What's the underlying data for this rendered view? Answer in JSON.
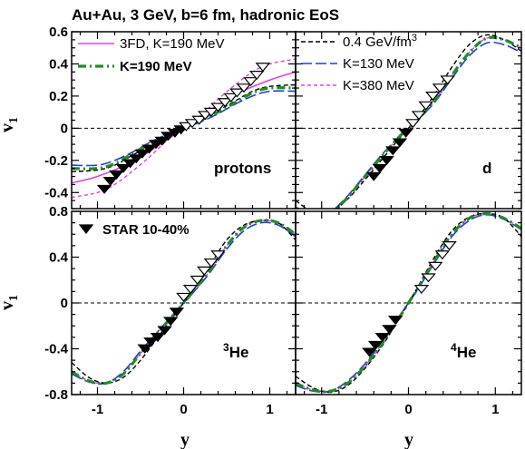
{
  "title": "Au+Au, 3 GeV, b=6 fm, hadronic EoS",
  "xlabel": "y",
  "ylabel": "v",
  "ylabel_sub": "1",
  "legends": {
    "top_left": [
      {
        "label": "3FD, K=190 MeV",
        "color": "#e040e0",
        "style": "solid"
      },
      {
        "label": "K=190 MeV",
        "color": "#228b22",
        "style": "dashdot",
        "bold": true
      }
    ],
    "top_right": [
      {
        "label": "0.4 GeV/fm",
        "sup": "3",
        "color": "#000000",
        "style": "dash"
      },
      {
        "label": "K=130 MeV",
        "color": "#1f3fd6",
        "style": "longdash"
      },
      {
        "label": "K=380 MeV",
        "color": "#e040e0",
        "style": "shortdash"
      }
    ],
    "bottom_left": [
      {
        "label": "STAR 10-40%",
        "marker": "filled-triangle-down"
      }
    ]
  },
  "colors": {
    "3fd": "#e040e0",
    "k190": "#228b22",
    "k130": "#1f3fd6",
    "k380": "#e040e0",
    "rho04": "#000000"
  },
  "chart_data": [
    {
      "type": "line",
      "panel": "protons",
      "panel_label": "protons",
      "xlim": [
        -1.3,
        1.3
      ],
      "ylim": [
        -0.5,
        0.6
      ],
      "yticks": [
        -0.4,
        -0.2,
        0,
        0.2,
        0.4,
        0.6
      ],
      "xticks": [
        -1,
        0,
        1
      ],
      "series": [
        {
          "name": "3FD, K=190 MeV",
          "key": "3fd",
          "x": [
            -1.3,
            -1.0,
            -0.6,
            -0.3,
            0.0,
            0.3,
            0.6,
            1.0,
            1.3
          ],
          "y": [
            -0.34,
            -0.3,
            -0.21,
            -0.11,
            0.0,
            0.11,
            0.21,
            0.3,
            0.35
          ]
        },
        {
          "name": "K=190 MeV",
          "key": "k190",
          "x": [
            -1.3,
            -1.0,
            -0.8,
            -0.6,
            -0.4,
            -0.2,
            0.0,
            0.2,
            0.4,
            0.6,
            0.8,
            1.0,
            1.3
          ],
          "y": [
            -0.25,
            -0.25,
            -0.22,
            -0.16,
            -0.1,
            -0.05,
            0.0,
            0.05,
            0.1,
            0.16,
            0.22,
            0.25,
            0.25
          ]
        },
        {
          "name": "0.4 GeV/fm3",
          "key": "rho04",
          "x": [
            -1.3,
            -1.0,
            -0.8,
            -0.6,
            -0.4,
            -0.2,
            0.0,
            0.2,
            0.4,
            0.6,
            0.8,
            1.0,
            1.3
          ],
          "y": [
            -0.27,
            -0.26,
            -0.23,
            -0.17,
            -0.11,
            -0.05,
            0.0,
            0.05,
            0.11,
            0.17,
            0.23,
            0.26,
            0.27
          ]
        },
        {
          "name": "K=130 MeV",
          "key": "k130",
          "x": [
            -1.3,
            -1.0,
            -0.8,
            -0.6,
            -0.4,
            -0.2,
            0.0,
            0.2,
            0.4,
            0.6,
            0.8,
            1.0,
            1.3
          ],
          "y": [
            -0.23,
            -0.23,
            -0.2,
            -0.15,
            -0.09,
            -0.04,
            0.0,
            0.04,
            0.09,
            0.15,
            0.2,
            0.23,
            0.23
          ]
        },
        {
          "name": "K=380 MeV",
          "key": "k380",
          "x": [
            -1.3,
            -1.0,
            -0.8,
            -0.6,
            -0.4,
            -0.2,
            0.0,
            0.2,
            0.4,
            0.6,
            0.8,
            1.0,
            1.3
          ],
          "y": [
            -0.43,
            -0.4,
            -0.35,
            -0.27,
            -0.18,
            -0.08,
            0.0,
            0.08,
            0.18,
            0.27,
            0.35,
            0.4,
            0.43
          ]
        }
      ],
      "star_filled": {
        "x": [
          -0.92,
          -0.85,
          -0.78,
          -0.7,
          -0.62,
          -0.55,
          -0.48,
          -0.4,
          -0.32,
          -0.25,
          -0.18,
          -0.1,
          -0.03
        ],
        "y": [
          -0.38,
          -0.33,
          -0.29,
          -0.25,
          -0.22,
          -0.19,
          -0.16,
          -0.13,
          -0.1,
          -0.08,
          -0.05,
          -0.03,
          -0.01
        ]
      },
      "star_open": {
        "x": [
          0.03,
          0.1,
          0.18,
          0.25,
          0.32,
          0.4,
          0.48,
          0.55,
          0.62,
          0.7,
          0.78,
          0.85,
          0.92
        ],
        "y": [
          0.01,
          0.03,
          0.05,
          0.08,
          0.1,
          0.13,
          0.16,
          0.19,
          0.22,
          0.25,
          0.29,
          0.33,
          0.38
        ]
      }
    },
    {
      "type": "line",
      "panel": "d",
      "panel_label": "d",
      "xlim": [
        -1.3,
        1.3
      ],
      "ylim": [
        -0.5,
        0.6
      ],
      "yticks": [
        -0.4,
        -0.2,
        0,
        0.2,
        0.4,
        0.6
      ],
      "xticks": [
        -1,
        0,
        1
      ],
      "series": [
        {
          "name": "K=190 MeV",
          "key": "k190",
          "x": [
            -1.3,
            -1.1,
            -0.9,
            -0.7,
            -0.5,
            -0.3,
            -0.1,
            0.0,
            0.1,
            0.3,
            0.5,
            0.7,
            0.9,
            1.1,
            1.3
          ],
          "y": [
            -0.5,
            -0.55,
            -0.53,
            -0.43,
            -0.3,
            -0.17,
            -0.05,
            0.0,
            0.05,
            0.17,
            0.33,
            0.47,
            0.56,
            0.55,
            0.5
          ]
        },
        {
          "name": "0.4 GeV/fm3",
          "key": "rho04",
          "x": [
            -1.3,
            -1.1,
            -0.9,
            -0.7,
            -0.5,
            -0.3,
            -0.1,
            0.0,
            0.1,
            0.3,
            0.5,
            0.7,
            0.9,
            1.1,
            1.3
          ],
          "y": [
            -0.45,
            -0.52,
            -0.52,
            -0.44,
            -0.32,
            -0.19,
            -0.06,
            0.0,
            0.06,
            0.21,
            0.38,
            0.52,
            0.58,
            0.55,
            0.48
          ]
        },
        {
          "name": "K=130 MeV",
          "key": "k130",
          "x": [
            -1.3,
            -1.1,
            -0.9,
            -0.7,
            -0.5,
            -0.3,
            -0.1,
            0.0,
            0.1,
            0.3,
            0.5,
            0.7,
            0.9,
            1.1,
            1.3
          ],
          "y": [
            -0.49,
            -0.54,
            -0.52,
            -0.42,
            -0.29,
            -0.16,
            -0.05,
            0.0,
            0.05,
            0.16,
            0.31,
            0.45,
            0.53,
            0.52,
            0.47
          ]
        },
        {
          "name": "K=380 MeV",
          "key": "k380",
          "x": [
            -1.3,
            -1.1,
            -0.9,
            -0.7,
            -0.5,
            -0.3,
            -0.1,
            0.0,
            0.1,
            0.3,
            0.5,
            0.7,
            0.9,
            1.1,
            1.3
          ],
          "y": [
            -0.5,
            -0.55,
            -0.53,
            -0.43,
            -0.3,
            -0.17,
            -0.05,
            0.0,
            0.05,
            0.17,
            0.33,
            0.47,
            0.56,
            0.55,
            0.5
          ]
        }
      ],
      "star_filled": {
        "x": [
          -0.4,
          -0.33,
          -0.25,
          -0.18,
          -0.1,
          -0.03
        ],
        "y": [
          -0.3,
          -0.25,
          -0.2,
          -0.14,
          -0.09,
          -0.03
        ]
      },
      "star_open": {
        "x": [
          0.05,
          0.12,
          0.2,
          0.28,
          0.36,
          0.45
        ],
        "y": [
          0.03,
          0.08,
          0.14,
          0.2,
          0.25,
          0.3
        ]
      }
    },
    {
      "type": "line",
      "panel": "3He",
      "panel_label": "He",
      "panel_label_sup": "3",
      "xlim": [
        -1.3,
        1.3
      ],
      "ylim": [
        -0.8,
        0.8
      ],
      "yticks": [
        -0.8,
        -0.4,
        0,
        0.4,
        0.8
      ],
      "xticks": [
        -1,
        0,
        1
      ],
      "series": [
        {
          "name": "K=190 MeV",
          "key": "k190",
          "x": [
            -1.3,
            -1.1,
            -0.9,
            -0.7,
            -0.5,
            -0.3,
            -0.1,
            0.0,
            0.1,
            0.3,
            0.5,
            0.7,
            0.9,
            1.1,
            1.3
          ],
          "y": [
            -0.6,
            -0.68,
            -0.7,
            -0.62,
            -0.44,
            -0.26,
            -0.09,
            0.0,
            0.09,
            0.28,
            0.5,
            0.66,
            0.72,
            0.7,
            0.6
          ]
        },
        {
          "name": "0.4 GeV/fm3",
          "key": "rho04",
          "x": [
            -1.3,
            -1.1,
            -0.9,
            -0.7,
            -0.5,
            -0.3,
            -0.1,
            0.0,
            0.1,
            0.3,
            0.5,
            0.7,
            0.9,
            1.1,
            1.3
          ],
          "y": [
            -0.52,
            -0.65,
            -0.7,
            -0.65,
            -0.5,
            -0.3,
            -0.1,
            0.0,
            0.1,
            0.32,
            0.55,
            0.68,
            0.72,
            0.7,
            0.55
          ]
        },
        {
          "name": "K=130 MeV",
          "key": "k130",
          "x": [
            -1.3,
            -1.1,
            -0.9,
            -0.7,
            -0.5,
            -0.3,
            -0.1,
            0.0,
            0.1,
            0.3,
            0.5,
            0.7,
            0.9,
            1.1,
            1.3
          ],
          "y": [
            -0.62,
            -0.69,
            -0.7,
            -0.6,
            -0.42,
            -0.25,
            -0.08,
            0.0,
            0.08,
            0.26,
            0.47,
            0.63,
            0.7,
            0.68,
            0.58
          ]
        },
        {
          "name": "K=380 MeV",
          "key": "k380",
          "x": [
            -1.3,
            -1.1,
            -0.9,
            -0.7,
            -0.5,
            -0.3,
            -0.1,
            0.0,
            0.1,
            0.3,
            0.5,
            0.7,
            0.9,
            1.1,
            1.3
          ],
          "y": [
            -0.6,
            -0.68,
            -0.7,
            -0.62,
            -0.44,
            -0.26,
            -0.09,
            0.0,
            0.09,
            0.28,
            0.5,
            0.66,
            0.72,
            0.7,
            0.6
          ]
        }
      ],
      "star_filled": {
        "x": [
          -0.45,
          -0.38,
          -0.3,
          -0.22,
          -0.15,
          -0.08
        ],
        "y": [
          -0.4,
          -0.34,
          -0.3,
          -0.24,
          -0.16,
          -0.08
        ]
      },
      "star_open": {
        "x": [
          0.0,
          0.08,
          0.16,
          0.24,
          0.32,
          0.4
        ],
        "y": [
          0.05,
          0.12,
          0.2,
          0.28,
          0.35,
          0.42
        ]
      }
    },
    {
      "type": "line",
      "panel": "4He",
      "panel_label": "He",
      "panel_label_sup": "4",
      "xlim": [
        -1.3,
        1.3
      ],
      "ylim": [
        -0.8,
        0.8
      ],
      "yticks": [
        -0.8,
        -0.4,
        0,
        0.4,
        0.8
      ],
      "xticks": [
        -1,
        0,
        1
      ],
      "series": [
        {
          "name": "K=190 MeV",
          "key": "k190",
          "x": [
            -1.3,
            -1.1,
            -0.9,
            -0.7,
            -0.5,
            -0.3,
            -0.1,
            0.0,
            0.1,
            0.3,
            0.5,
            0.7,
            0.9,
            1.1,
            1.3
          ],
          "y": [
            -0.7,
            -0.76,
            -0.77,
            -0.7,
            -0.55,
            -0.35,
            -0.12,
            0.0,
            0.12,
            0.37,
            0.6,
            0.74,
            0.78,
            0.74,
            0.65
          ]
        },
        {
          "name": "0.4 GeV/fm3",
          "key": "rho04",
          "x": [
            -1.3,
            -1.1,
            -0.9,
            -0.7,
            -0.5,
            -0.3,
            -0.1,
            0.0,
            0.1,
            0.3,
            0.5,
            0.7,
            0.9,
            1.1,
            1.3
          ],
          "y": [
            -0.64,
            -0.74,
            -0.78,
            -0.72,
            -0.57,
            -0.37,
            -0.13,
            0.0,
            0.13,
            0.4,
            0.63,
            0.75,
            0.78,
            0.74,
            0.58
          ]
        },
        {
          "name": "K=130 MeV",
          "key": "k130",
          "x": [
            -1.3,
            -1.1,
            -0.9,
            -0.7,
            -0.5,
            -0.3,
            -0.1,
            0.0,
            0.1,
            0.3,
            0.5,
            0.7,
            0.9,
            1.1,
            1.3
          ],
          "y": [
            -0.72,
            -0.77,
            -0.77,
            -0.68,
            -0.53,
            -0.33,
            -0.11,
            0.0,
            0.11,
            0.35,
            0.58,
            0.72,
            0.77,
            0.73,
            0.64
          ]
        },
        {
          "name": "K=380 MeV",
          "key": "k380",
          "x": [
            -1.3,
            -1.1,
            -0.9,
            -0.7,
            -0.5,
            -0.3,
            -0.1,
            0.0,
            0.1,
            0.3,
            0.5,
            0.7,
            0.9,
            1.1,
            1.3
          ],
          "y": [
            -0.7,
            -0.76,
            -0.77,
            -0.7,
            -0.55,
            -0.35,
            -0.12,
            0.0,
            0.12,
            0.37,
            0.6,
            0.74,
            0.78,
            0.74,
            0.65
          ]
        }
      ],
      "star_filled": {
        "x": [
          -0.45,
          -0.38,
          -0.3,
          -0.22,
          -0.15
        ],
        "y": [
          -0.43,
          -0.37,
          -0.3,
          -0.23,
          -0.15
        ]
      },
      "star_open": {
        "x": [
          0.15,
          0.23,
          0.31,
          0.39,
          0.47
        ],
        "y": [
          0.12,
          0.22,
          0.32,
          0.42,
          0.5
        ]
      }
    }
  ]
}
